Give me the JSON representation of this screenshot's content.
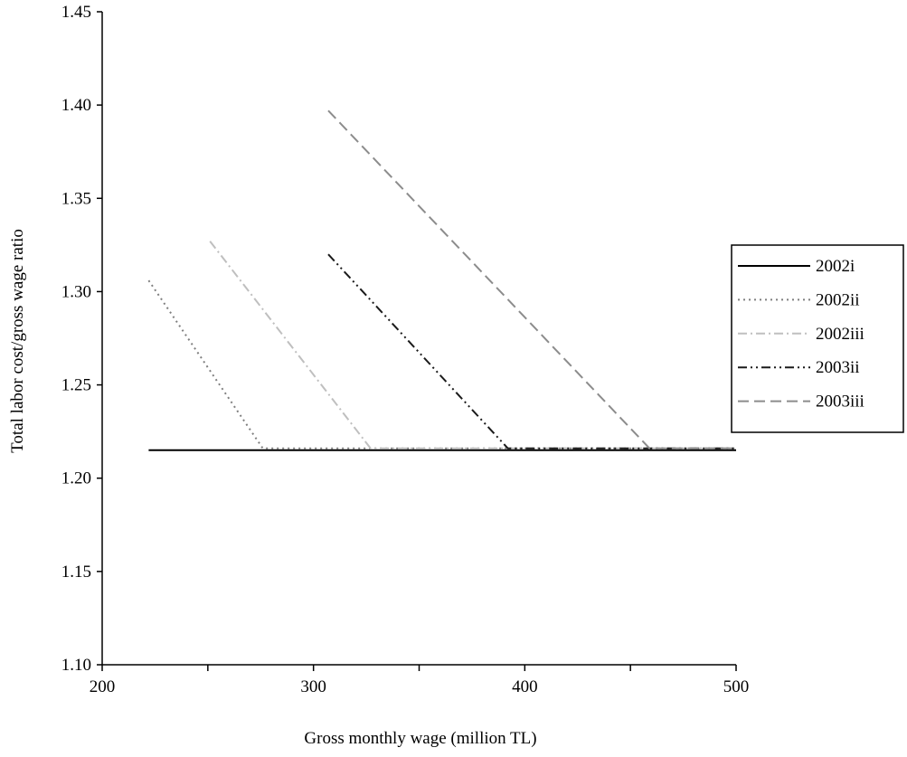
{
  "chart_data": {
    "type": "line",
    "title": "",
    "xlabel": "Gross monthly wage (million TL)",
    "ylabel": "Total labor cost/gross wage ratio",
    "xlim": [
      200,
      500
    ],
    "ylim": [
      1.1,
      1.45
    ],
    "x_ticks": [
      200,
      300,
      400,
      500
    ],
    "x_minor_ticks": [
      250,
      350,
      450
    ],
    "y_ticks": [
      1.1,
      1.15,
      1.2,
      1.25,
      1.3,
      1.35,
      1.4,
      1.45
    ],
    "x_tick_labels": [
      "200",
      "300",
      "400",
      "500"
    ],
    "y_tick_labels": [
      "1.10",
      "1.15",
      "1.20",
      "1.25",
      "1.30",
      "1.35",
      "1.40",
      "1.45"
    ],
    "grid": false,
    "legend_position": "right",
    "series": [
      {
        "name": "2002i",
        "color": "#000000",
        "dash": "solid",
        "x": [
          222,
          500
        ],
        "y": [
          1.215,
          1.215
        ]
      },
      {
        "name": "2002ii",
        "color": "#7f7f7f",
        "dash": "dot",
        "x": [
          222,
          276,
          500
        ],
        "y": [
          1.306,
          1.216,
          1.216
        ]
      },
      {
        "name": "2002iii",
        "color": "#bfbfbf",
        "dash": "dash-dot",
        "x": [
          251,
          327,
          500
        ],
        "y": [
          1.327,
          1.216,
          1.216
        ]
      },
      {
        "name": "2003ii",
        "color": "#1a1a1a",
        "dash": "dash-dot-dot",
        "x": [
          307,
          392,
          500
        ],
        "y": [
          1.32,
          1.216,
          1.216
        ]
      },
      {
        "name": "2003iii",
        "color": "#8c8c8c",
        "dash": "long-dash",
        "x": [
          307,
          459,
          500
        ],
        "y": [
          1.397,
          1.216,
          1.216
        ]
      }
    ]
  }
}
